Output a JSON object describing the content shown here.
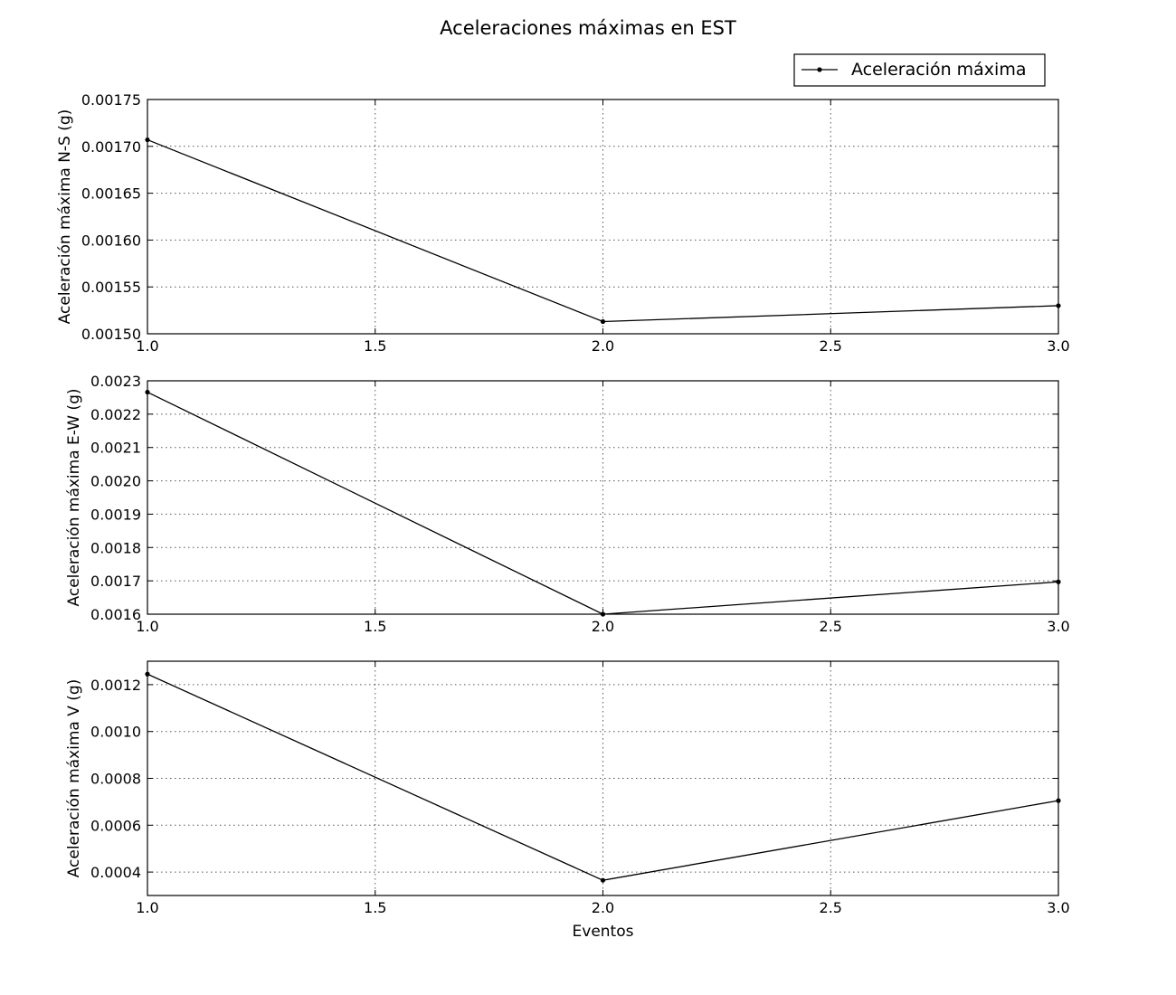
{
  "figure": {
    "title": "Aceleraciones máximas en EST",
    "legend": {
      "label": "Aceleración máxima",
      "position": "top-right"
    }
  },
  "chart_data": [
    {
      "type": "line",
      "x": [
        1.0,
        2.0,
        3.0
      ],
      "series": [
        {
          "name": "Aceleración máxima",
          "values": [
            0.001707,
            0.001513,
            0.00153
          ]
        }
      ],
      "xlabel": "",
      "ylabel": "Aceleración máxima N-S (g)",
      "xlim": [
        1.0,
        3.0
      ],
      "ylim": [
        0.0015,
        0.00175
      ],
      "xticks": [
        1.0,
        1.5,
        2.0,
        2.5,
        3.0
      ],
      "xtick_labels": [
        "1.0",
        "1.5",
        "2.0",
        "2.5",
        "3.0"
      ],
      "yticks": [
        0.0015,
        0.00155,
        0.0016,
        0.00165,
        0.0017,
        0.00175
      ],
      "ytick_labels": [
        "0.00150",
        "0.00155",
        "0.00160",
        "0.00165",
        "0.00170",
        "0.00175"
      ],
      "grid": true
    },
    {
      "type": "line",
      "x": [
        1.0,
        2.0,
        3.0
      ],
      "series": [
        {
          "name": "Aceleración máxima",
          "values": [
            0.002266,
            0.0016,
            0.001697
          ]
        }
      ],
      "xlabel": "",
      "ylabel": "Aceleración máxima E-W (g)",
      "xlim": [
        1.0,
        3.0
      ],
      "ylim": [
        0.0016,
        0.0023
      ],
      "xticks": [
        1.0,
        1.5,
        2.0,
        2.5,
        3.0
      ],
      "xtick_labels": [
        "1.0",
        "1.5",
        "2.0",
        "2.5",
        "3.0"
      ],
      "yticks": [
        0.0016,
        0.0017,
        0.0018,
        0.0019,
        0.002,
        0.0021,
        0.0022,
        0.0023
      ],
      "ytick_labels": [
        "0.0016",
        "0.0017",
        "0.0018",
        "0.0019",
        "0.0020",
        "0.0021",
        "0.0022",
        "0.0023"
      ],
      "grid": true
    },
    {
      "type": "line",
      "x": [
        1.0,
        2.0,
        3.0
      ],
      "series": [
        {
          "name": "Aceleración máxima",
          "values": [
            0.001245,
            0.000365,
            0.000705
          ]
        }
      ],
      "xlabel": "Eventos",
      "ylabel": "Aceleración máxima V (g)",
      "xlim": [
        1.0,
        3.0
      ],
      "ylim": [
        0.0003,
        0.0013
      ],
      "xticks": [
        1.0,
        1.5,
        2.0,
        2.5,
        3.0
      ],
      "xtick_labels": [
        "1.0",
        "1.5",
        "2.0",
        "2.5",
        "3.0"
      ],
      "yticks": [
        0.0004,
        0.0006,
        0.0008,
        0.001,
        0.0012
      ],
      "ytick_labels": [
        "0.0004",
        "0.0006",
        "0.0008",
        "0.0010",
        "0.0012"
      ],
      "grid": true
    }
  ]
}
